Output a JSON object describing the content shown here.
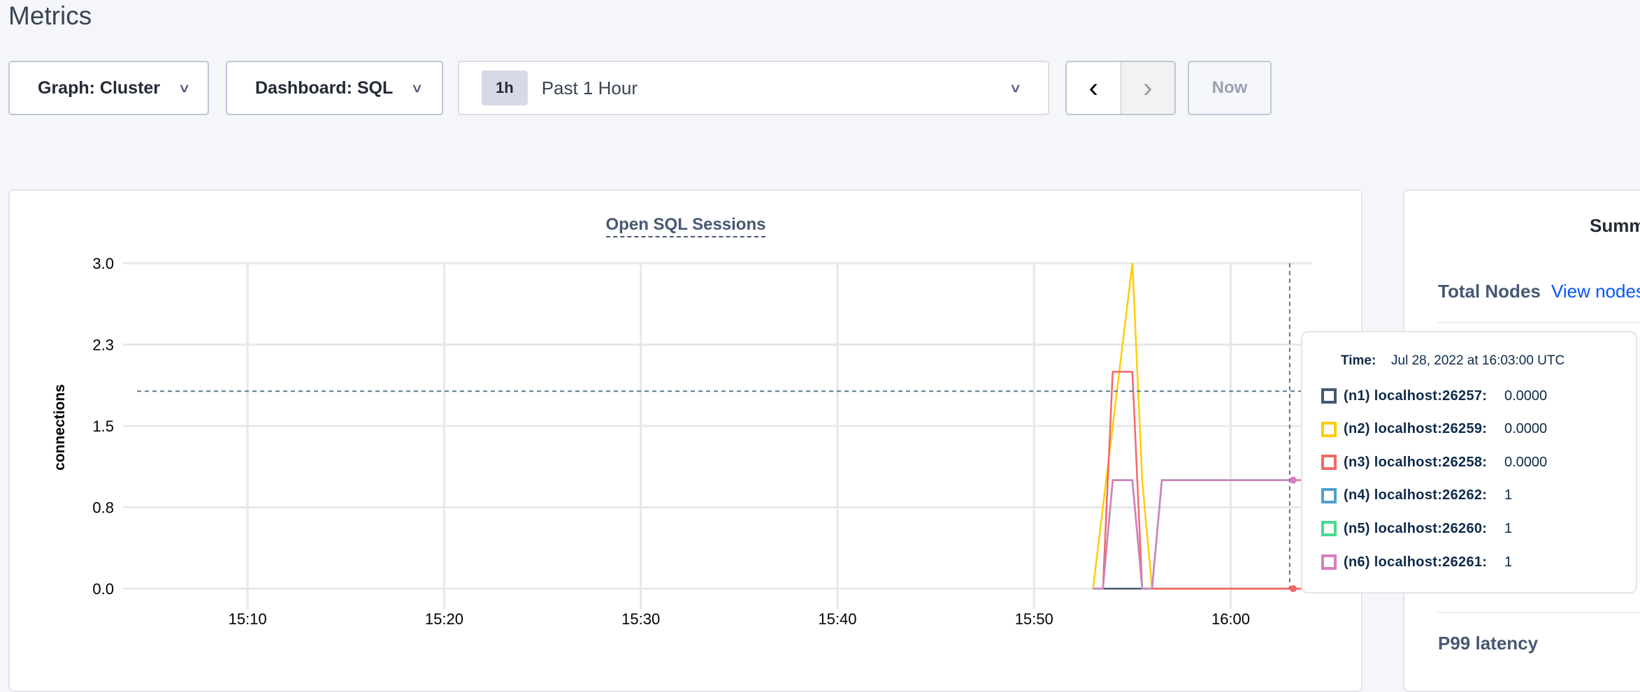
{
  "header": {
    "title": "Metrics"
  },
  "toolbar": {
    "graph_select": "Graph: Cluster",
    "dashboard_select": "Dashboard: SQL",
    "range_badge": "1h",
    "range_label": "Past 1 Hour",
    "prev_icon": "chevron-left-icon",
    "next_icon": "chevron-right-icon",
    "now_label": "Now"
  },
  "summary": {
    "title": "Summ",
    "total_nodes_label": "Total Nodes",
    "view_nodes_link": "View nodes",
    "p99_label": "P99 latency"
  },
  "tooltip": {
    "time_label": "Time:",
    "time_value": "Jul 28, 2022 at 16:03:00 UTC",
    "rows": [
      {
        "name": "(n1) localhost:26257:",
        "value": "0.0000",
        "color": "#475872"
      },
      {
        "name": "(n2) localhost:26259:",
        "value": "0.0000",
        "color": "#FFCD02"
      },
      {
        "name": "(n3) localhost:26258:",
        "value": "0.0000",
        "color": "#F16969"
      },
      {
        "name": "(n4) localhost:26262:",
        "value": "1",
        "color": "#4E9FD1"
      },
      {
        "name": "(n5) localhost:26260:",
        "value": "1",
        "color": "#49D990"
      },
      {
        "name": "(n6) localhost:26261:",
        "value": "1",
        "color": "#D77FBF"
      }
    ]
  },
  "chart_data": {
    "type": "line",
    "title": "Open SQL Sessions",
    "ylabel": "connections",
    "xlabel": "",
    "xlim": [
      "15:03:40",
      "16:04:00"
    ],
    "ylim": [
      0,
      3
    ],
    "x_ticks": [
      "15:10",
      "15:20",
      "15:30",
      "15:40",
      "15:50",
      "16:00"
    ],
    "y_ticks": [
      "0.0",
      "0.8",
      "1.5",
      "2.3",
      "3.0"
    ],
    "y_tick_values": [
      0,
      0.75,
      1.5,
      2.25,
      3
    ],
    "grid": true,
    "hover_time": "16:03:00",
    "hover_y": 1.82,
    "series": [
      {
        "name": "(n1) localhost:26257",
        "color": "#475872",
        "points": [
          [
            "15:53:00",
            0
          ],
          [
            "16:04:00",
            0
          ]
        ]
      },
      {
        "name": "(n2) localhost:26259",
        "color": "#FFCD02",
        "points": [
          [
            "15:53:00",
            0
          ],
          [
            "15:55:00",
            3
          ],
          [
            "15:55:30",
            1
          ],
          [
            "15:56:00",
            0
          ],
          [
            "16:04:00",
            0
          ]
        ]
      },
      {
        "name": "(n3) localhost:26258",
        "color": "#F16969",
        "points": [
          [
            "15:53:00",
            0
          ],
          [
            "15:53:30",
            0
          ],
          [
            "15:54:00",
            2
          ],
          [
            "15:55:00",
            2
          ],
          [
            "15:55:30",
            0
          ],
          [
            "16:04:00",
            0
          ]
        ]
      },
      {
        "name": "(n4) localhost:26262",
        "color": "#4E9FD1",
        "points": [
          [
            "15:53:00",
            0
          ],
          [
            "15:53:30",
            0
          ],
          [
            "15:54:00",
            1
          ],
          [
            "15:55:00",
            1
          ],
          [
            "15:55:30",
            0
          ],
          [
            "15:56:00",
            0
          ],
          [
            "15:56:30",
            1
          ],
          [
            "16:04:00",
            1
          ]
        ]
      },
      {
        "name": "(n5) localhost:26260",
        "color": "#49D990",
        "points": [
          [
            "15:53:00",
            0
          ],
          [
            "15:53:30",
            0
          ],
          [
            "15:54:00",
            1
          ],
          [
            "15:55:00",
            1
          ],
          [
            "15:55:30",
            0
          ],
          [
            "15:56:00",
            0
          ],
          [
            "15:56:30",
            1
          ],
          [
            "16:04:00",
            1
          ]
        ]
      },
      {
        "name": "(n6) localhost:26261",
        "color": "#D77FBF",
        "points": [
          [
            "15:53:00",
            0
          ],
          [
            "15:53:30",
            0
          ],
          [
            "15:54:00",
            1
          ],
          [
            "15:55:00",
            1
          ],
          [
            "15:55:30",
            0
          ],
          [
            "15:56:00",
            0
          ],
          [
            "15:56:30",
            1
          ],
          [
            "16:04:00",
            1
          ]
        ]
      }
    ]
  }
}
